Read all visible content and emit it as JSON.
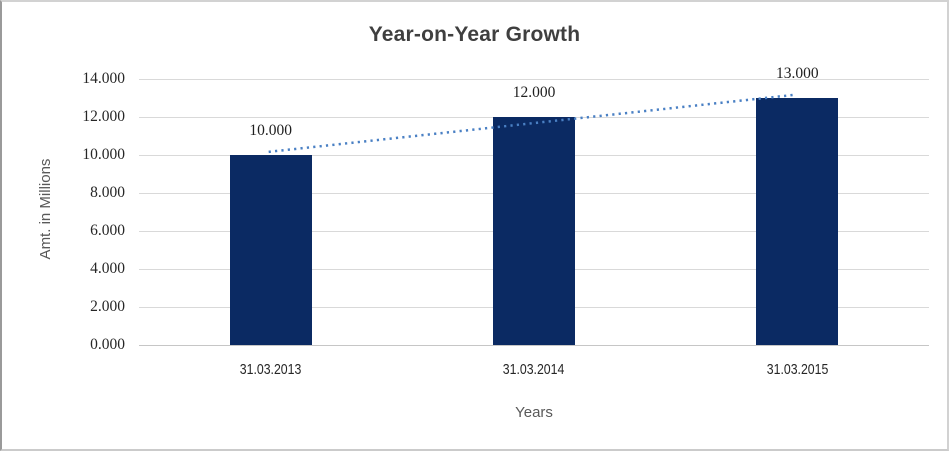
{
  "chart_data": {
    "type": "bar",
    "title": "Year-on-Year Growth",
    "xlabel": "Years",
    "ylabel": "Amt. in Millions",
    "categories": [
      "31.03.2013",
      "31.03.2014",
      "31.03.2015"
    ],
    "series": [
      {
        "name": "Amt. in Millions",
        "values": [
          10,
          12,
          13
        ]
      }
    ],
    "data_labels": [
      "10.000",
      "12.000",
      "13.000"
    ],
    "yticks": [
      {
        "value": 0,
        "label": "0.000"
      },
      {
        "value": 2,
        "label": "2.000"
      },
      {
        "value": 4,
        "label": "4.000"
      },
      {
        "value": 6,
        "label": "6.000"
      },
      {
        "value": 8,
        "label": "8.000"
      },
      {
        "value": 10,
        "label": "10.000"
      },
      {
        "value": 12,
        "label": "12.000"
      },
      {
        "value": 14,
        "label": "14.000"
      }
    ],
    "ylim": [
      0,
      14
    ],
    "grid": true,
    "legend": "none",
    "trendline": {
      "type": "linear",
      "style": "dotted"
    },
    "colors": {
      "bar": "#0b2a63",
      "trend": "#4a80c4",
      "gridline": "#d9d9d9",
      "axisline": "#c6c6c6",
      "title": "#3f3f3f",
      "value_text": "#1f1f1f",
      "tick_text": "#262626",
      "axis_title_text": "#595959"
    }
  }
}
